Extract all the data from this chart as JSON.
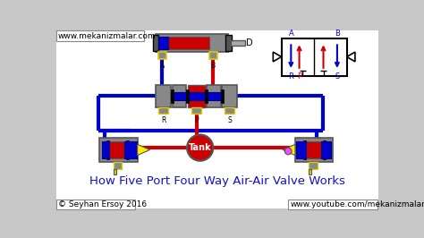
{
  "background_color": "#c8c8c8",
  "title": "How Five Port Four Way Air-Air Valve Works",
  "title_color": "#1010cc",
  "title_fontsize": 9.5,
  "watermark_top": "www.mekanizmalar.com",
  "watermark_bottom_left": "© Seyhan Ersoy 2016",
  "watermark_bottom_right": "www.youtube.com/mekanizmalar",
  "watermark_fontsize": 6.5,
  "colors": {
    "red": "#cc0000",
    "blue": "#0000cc",
    "gray": "#888888",
    "dark_gray": "#555555",
    "med_gray": "#777777",
    "yellow": "#ffee00",
    "black": "#000000",
    "white": "#ffffff",
    "light_gray": "#aaaaaa",
    "magenta": "#ff44ff",
    "dark_blue": "#000088",
    "gold": "#ddcc00",
    "light_blue": "#4444ff"
  }
}
